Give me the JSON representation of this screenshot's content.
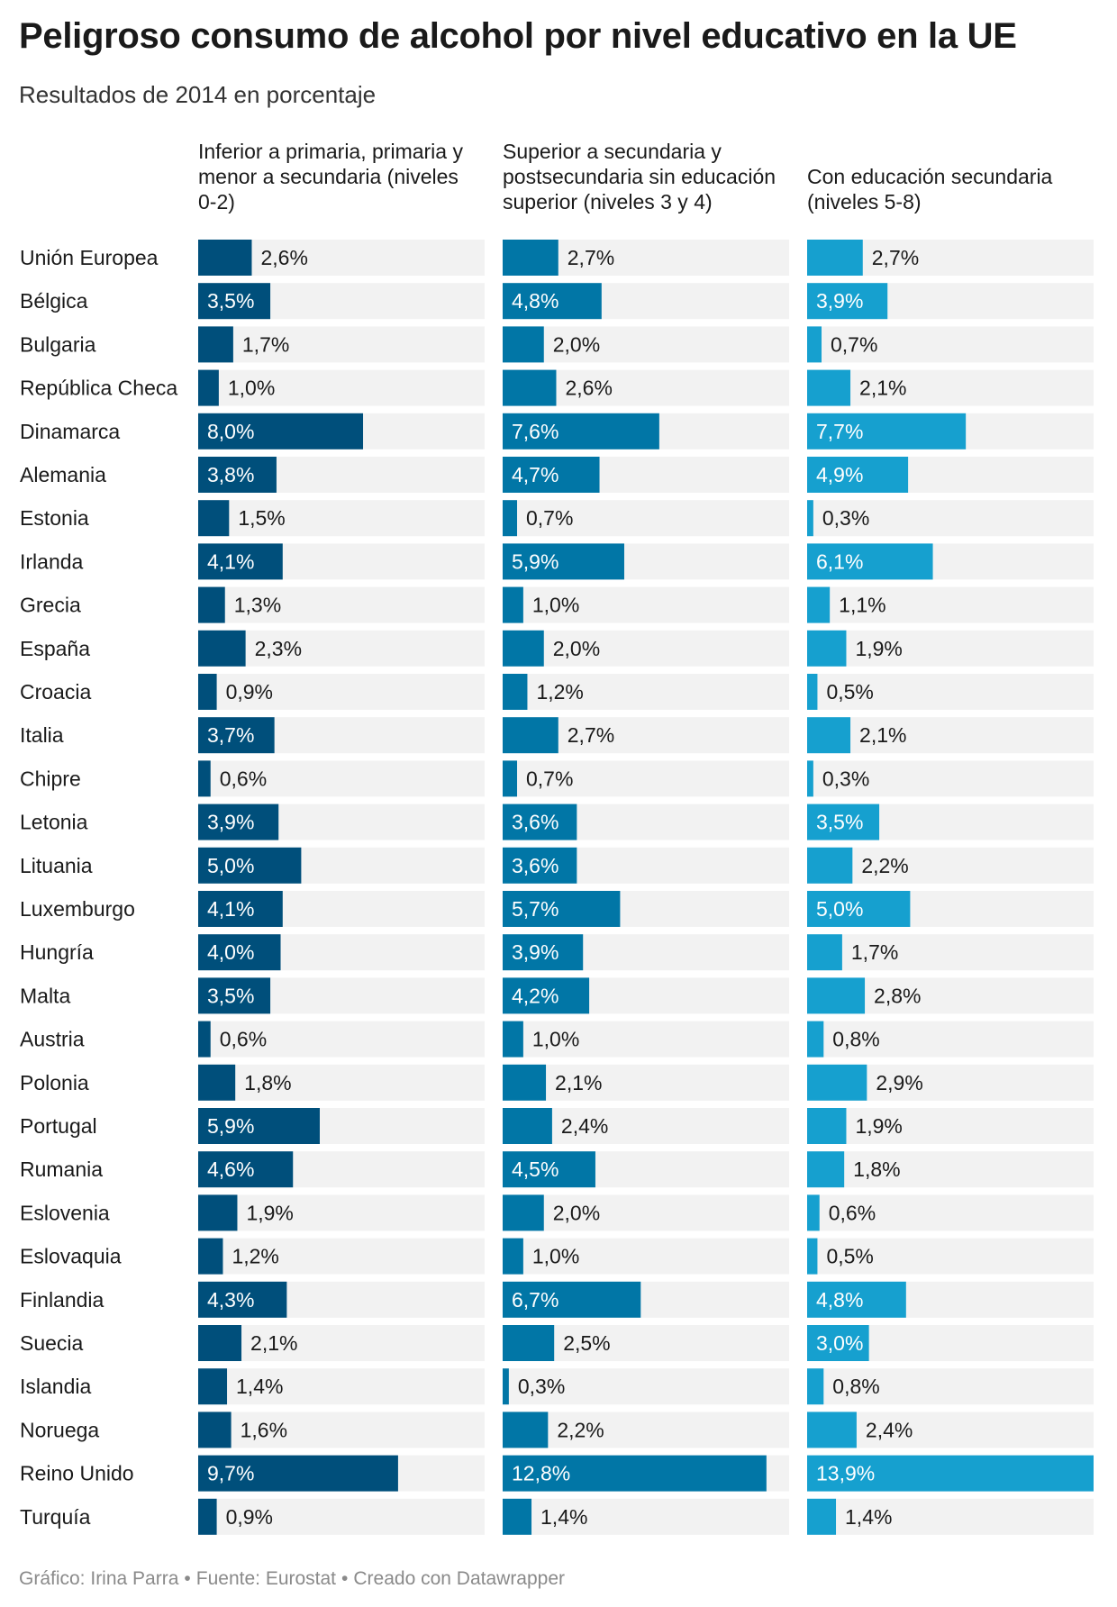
{
  "title": "Peligroso consumo de alcohol por nivel educativo en la UE",
  "subtitle": "Resultados de 2014 en porcentaje",
  "footer": {
    "chart_by": "Gráfico: Irina Parra",
    "source": "Fuente: Eurostat",
    "created_with": "Creado con Datawrapper"
  },
  "colors": {
    "track": "#f2f2f2",
    "label_dark": "#1a1a1a",
    "label_light": "#ffffff"
  },
  "chart_data": {
    "type": "bar",
    "orientation": "horizontal",
    "value_suffix": "%",
    "decimal_separator": ",",
    "xlim": [
      0,
      13.9
    ],
    "grid": false,
    "categories": [
      "Unión Europea",
      "Bélgica",
      "Bulgaria",
      "República Checa",
      "Dinamarca",
      "Alemania",
      "Estonia",
      "Irlanda",
      "Grecia",
      "España",
      "Croacia",
      "Italia",
      "Chipre",
      "Letonia",
      "Lituania",
      "Luxemburgo",
      "Hungría",
      "Malta",
      "Austria",
      "Polonia",
      "Portugal",
      "Rumania",
      "Eslovenia",
      "Eslovaquia",
      "Finlandia",
      "Suecia",
      "Islandia",
      "Noruega",
      "Reino Unido",
      "Turquía"
    ],
    "series": [
      {
        "name": "Inferior a primaria, primaria y menor a secundaria (niveles 0-2)",
        "color": "#004f7b",
        "values": [
          2.6,
          3.5,
          1.7,
          1.0,
          8.0,
          3.8,
          1.5,
          4.1,
          1.3,
          2.3,
          0.9,
          3.7,
          0.6,
          3.9,
          5.0,
          4.1,
          4.0,
          3.5,
          0.6,
          1.8,
          5.9,
          4.6,
          1.9,
          1.2,
          4.3,
          2.1,
          1.4,
          1.6,
          9.7,
          0.9
        ]
      },
      {
        "name": "Superior a secundaria y postsecundaria sin educación superior (niveles 3 y 4)",
        "color": "#0176a6",
        "values": [
          2.7,
          4.8,
          2.0,
          2.6,
          7.6,
          4.7,
          0.7,
          5.9,
          1.0,
          2.0,
          1.2,
          2.7,
          0.7,
          3.6,
          3.6,
          5.7,
          3.9,
          4.2,
          1.0,
          2.1,
          2.4,
          4.5,
          2.0,
          1.0,
          6.7,
          2.5,
          0.3,
          2.2,
          12.8,
          1.4
        ]
      },
      {
        "name": "Con educación secundaria (niveles 5-8)",
        "color": "#16a0cf",
        "values": [
          2.7,
          3.9,
          0.7,
          2.1,
          7.7,
          4.9,
          0.3,
          6.1,
          1.1,
          1.9,
          0.5,
          2.1,
          0.3,
          3.5,
          2.2,
          5.0,
          1.7,
          2.8,
          0.8,
          2.9,
          1.9,
          1.8,
          0.6,
          0.5,
          4.8,
          3.0,
          0.8,
          2.4,
          13.9,
          1.4
        ]
      }
    ]
  }
}
